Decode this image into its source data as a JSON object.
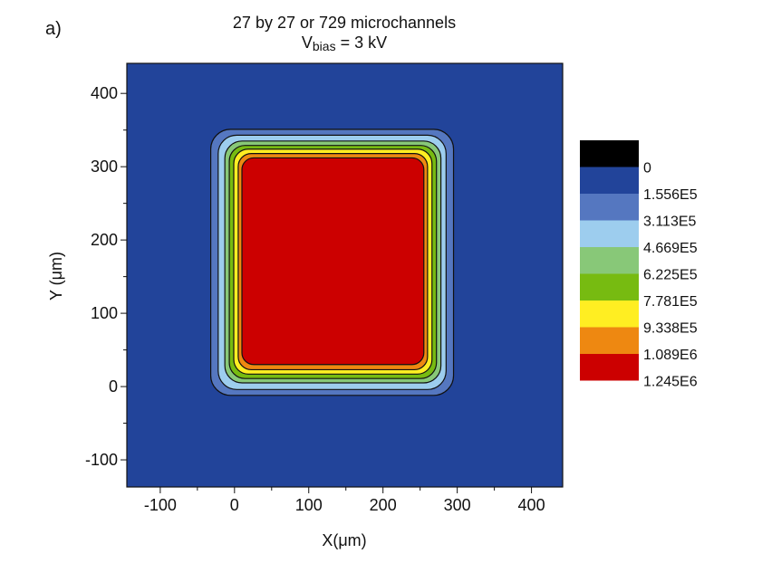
{
  "chart_data": {
    "type": "heatmap",
    "panel_label": "a)",
    "title_line1": "27 by 27 or 729 microchannels",
    "title_line2_main": "V",
    "title_line2_sub": "bias",
    "title_line2_rest": " = 3 kV",
    "xlabel": "X(μm)",
    "ylabel": "Y (μm)",
    "xlim": [
      -145,
      442
    ],
    "ylim": [
      -137,
      441
    ],
    "xticks": [
      -100,
      0,
      100,
      200,
      300,
      400
    ],
    "yticks": [
      -100,
      0,
      100,
      200,
      300,
      400
    ],
    "background_color": "#22449a",
    "legend": {
      "placement": "right",
      "levels": [
        {
          "label": "0",
          "color": "#000000"
        },
        {
          "label": "1.556E5",
          "color": "#22449a"
        },
        {
          "label": "3.113E5",
          "color": "#5577c0"
        },
        {
          "label": "4.669E5",
          "color": "#9dcdee"
        },
        {
          "label": "6.225E5",
          "color": "#88c878"
        },
        {
          "label": "7.781E5",
          "color": "#77bb11"
        },
        {
          "label": "9.338E5",
          "color": "#ffee22"
        },
        {
          "label": "1.089E6",
          "color": "#ee8811"
        },
        {
          "label": "1.245E6",
          "color": "#cc0000"
        }
      ]
    },
    "contour_bands": [
      {
        "level": "3.113E5",
        "color": "#5577c0",
        "x": [
          -32,
          295
        ],
        "y": [
          -12,
          351
        ]
      },
      {
        "level": "4.669E5",
        "color": "#9dcdee",
        "x": [
          -22,
          285
        ],
        "y": [
          -4,
          343
        ]
      },
      {
        "level": "6.225E5",
        "color": "#88c878",
        "x": [
          -13,
          278
        ],
        "y": [
          5,
          335
        ]
      },
      {
        "level": "7.781E5",
        "color": "#77bb11",
        "x": [
          -7,
          272
        ],
        "y": [
          11,
          329
        ]
      },
      {
        "level": "9.338E5",
        "color": "#ffee22",
        "x": [
          -1,
          266
        ],
        "y": [
          17,
          324
        ]
      },
      {
        "level": "1.089E6",
        "color": "#ee8811",
        "x": [
          5,
          260
        ],
        "y": [
          23,
          318
        ]
      },
      {
        "level": "1.245E6",
        "color": "#cc0000",
        "x": [
          10,
          255
        ],
        "y": [
          30,
          312
        ]
      }
    ]
  }
}
